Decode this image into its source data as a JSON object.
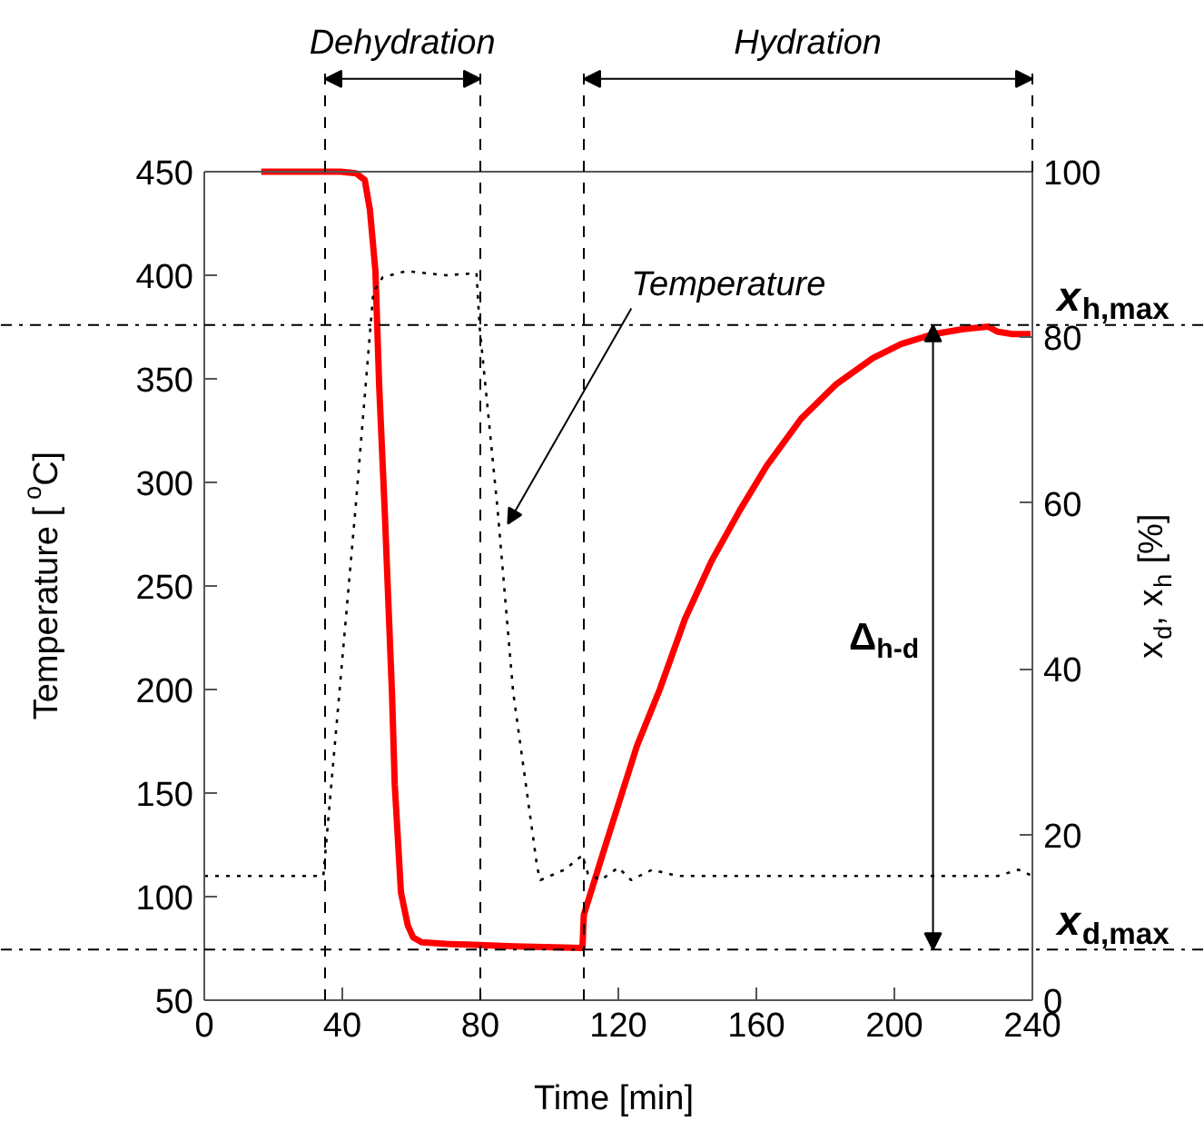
{
  "chart_data": {
    "type": "line",
    "xlabel": "Time [min]",
    "ylabel": "Temperature [$^{o}$C]",
    "y2label": "x$_{d}$, x$_{h}$ [%]",
    "xlim": [
      0,
      240
    ],
    "ylim": [
      50,
      450
    ],
    "y2lim": [
      0,
      100
    ],
    "xticks": [
      0,
      40,
      80,
      120,
      160,
      200,
      240
    ],
    "yticks": [
      50,
      100,
      150,
      200,
      250,
      300,
      350,
      400,
      450
    ],
    "y2ticks": [
      0,
      20,
      40,
      60,
      80,
      100
    ],
    "grid": false,
    "series": [
      {
        "color": "#ff0000",
        "axis": "y2",
        "line_style": "solid",
        "x": [
          16.5,
          39.5,
          44,
          46.5,
          48,
          49.6,
          50.7,
          52.3,
          54.4,
          55.2,
          57,
          59,
          60.5,
          63,
          70,
          90,
          109.6,
          110,
          116.5,
          125.4,
          132,
          139.3,
          147,
          155.3,
          163,
          173,
          183,
          193.8,
          202,
          211.4,
          220,
          227.2,
          229.8,
          234.2,
          239.5
        ],
        "values": [
          100,
          100,
          99.8,
          99,
          95.4,
          88,
          74,
          59,
          37,
          26,
          13,
          9,
          7.6,
          7,
          6.8,
          6.5,
          6.3,
          10.3,
          19,
          30.7,
          37.5,
          46,
          53,
          59.2,
          64.5,
          70.2,
          74.3,
          77.5,
          79.2,
          80.4,
          81,
          81.3,
          80.7,
          80.4,
          80.4
        ]
      },
      {
        "color": "#000000",
        "axis": "y",
        "line_style": "dotted",
        "x": [
          0,
          34.5,
          43.8,
          49,
          51.7,
          58.6,
          70,
          78.9,
          79.8,
          85,
          89.5,
          96.5,
          97.4,
          104.4,
          109.6,
          111.2,
          114.9,
          120,
          123.7,
          129.8,
          137,
          160,
          200,
          230,
          236,
          240
        ],
        "values": [
          110,
          110,
          287,
          392,
          399,
          402,
          400,
          401,
          375,
          287,
          199,
          114,
          108,
          113,
          120,
          111,
          108,
          114,
          108,
          113,
          110,
          110,
          110,
          110,
          113,
          110
        ]
      }
    ],
    "ref_lines": [
      {
        "axis": "x",
        "value": 35,
        "line_style": "dashed",
        "color": "#000000"
      },
      {
        "axis": "x",
        "value": 80,
        "line_style": "dashed",
        "color": "#000000"
      },
      {
        "axis": "x",
        "value": 110,
        "line_style": "dashed",
        "color": "#000000"
      },
      {
        "axis": "y2",
        "value": 81.5,
        "label": "x$_{h,max}$",
        "line_style": "dashdot",
        "color": "#000000"
      },
      {
        "axis": "y2",
        "value": 6.1,
        "label": "x$_{d,max}$",
        "line_style": "dashdot",
        "color": "#000000"
      }
    ],
    "annotations": [
      "Dehydration",
      "Hydration",
      {
        "text": "Temperature",
        "x": 88,
        "y": 280
      },
      "Δ$_{h-d}$"
    ]
  }
}
